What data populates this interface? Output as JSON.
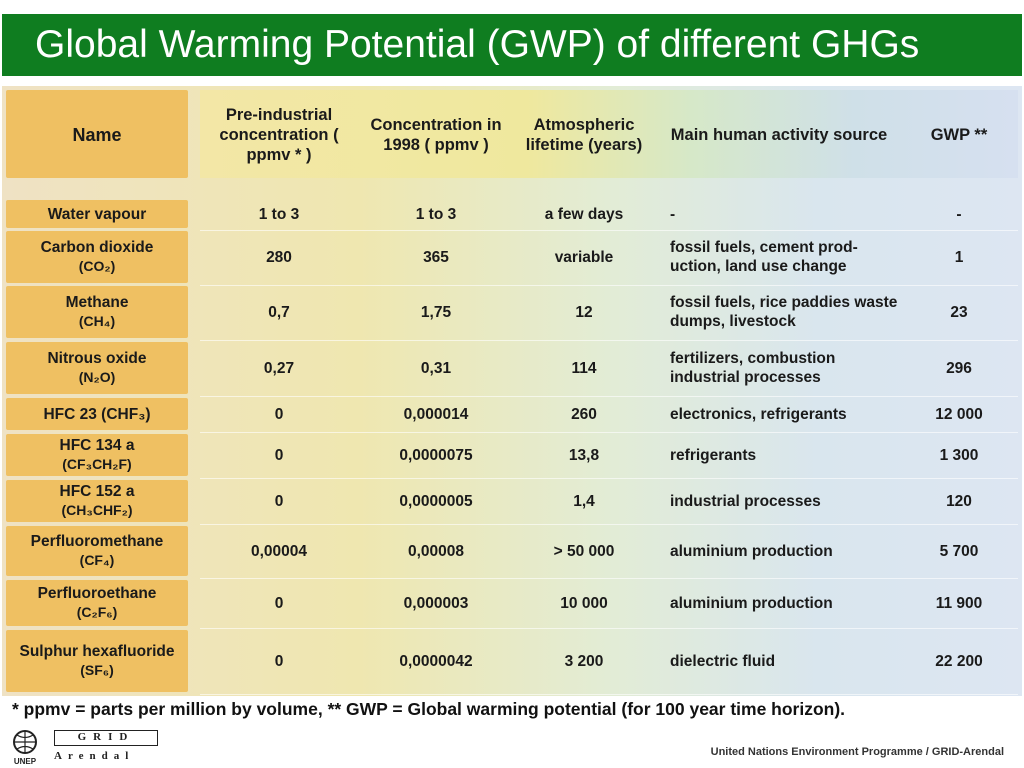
{
  "title": "Global Warming Potential (GWP) of different GHGs",
  "colors": {
    "title_bg": "#0f7d20",
    "name_col": "#efc062"
  },
  "columns": [
    "Name",
    "Pre-industrial concentration ( ppmv * )",
    "Concentration in 1998 ( ppmv )",
    "Atmospheric lifetime (years)",
    "Main human activity source",
    "GWP **"
  ],
  "rows": [
    {
      "name": "Water vapour",
      "formula": "",
      "pre": "1 to 3",
      "c1998": "1 to 3",
      "lifetime": "a few days",
      "source": "-",
      "gwp": "-"
    },
    {
      "name": "Carbon dioxide",
      "formula": "(CO₂)",
      "pre": "280",
      "c1998": "365",
      "lifetime": "variable",
      "source": "fossil fuels, cement prod-uction, land use change",
      "gwp": "1"
    },
    {
      "name": "Methane",
      "formula": "(CH₄)",
      "pre": "0,7",
      "c1998": "1,75",
      "lifetime": "12",
      "source": "fossil fuels, rice paddies waste dumps, livestock",
      "gwp": "23"
    },
    {
      "name": "Nitrous oxide",
      "formula": "(N₂O)",
      "pre": "0,27",
      "c1998": "0,31",
      "lifetime": "114",
      "source": "fertilizers, combustion industrial processes",
      "gwp": "296"
    },
    {
      "name": "HFC 23 (CHF₃)",
      "formula": "",
      "pre": "0",
      "c1998": "0,000014",
      "lifetime": "260",
      "source": "electronics, refrigerants",
      "gwp": "12 000"
    },
    {
      "name": "HFC 134 a",
      "formula": "(CF₃CH₂F)",
      "pre": "0",
      "c1998": "0,0000075",
      "lifetime": "13,8",
      "source": "refrigerants",
      "gwp": "1 300"
    },
    {
      "name": "HFC 152 a",
      "formula": "(CH₃CHF₂)",
      "pre": "0",
      "c1998": "0,0000005",
      "lifetime": "1,4",
      "source": "industrial processes",
      "gwp": "120"
    },
    {
      "name": "Perfluoromethane",
      "formula": "(CF₄)",
      "pre": "0,00004",
      "c1998": "0,00008",
      "lifetime": "> 50 000",
      "source": "aluminium production",
      "gwp": "5 700"
    },
    {
      "name": "Perfluoroethane",
      "formula": "(C₂F₆)",
      "pre": "0",
      "c1998": "0,000003",
      "lifetime": "10 000",
      "source": "aluminium production",
      "gwp": "11 900"
    },
    {
      "name": "Sulphur hexafluoride",
      "formula": "(SF₆)",
      "pre": "0",
      "c1998": "0,0000042",
      "lifetime": "3 200",
      "source": "dielectric fluid",
      "gwp": "22 200"
    }
  ],
  "footnote": "* ppmv = parts per million by volume, ** GWP = Global warming potential (for 100 year time horizon).",
  "logo": {
    "unep": "UNEP",
    "grid_top": "GRID",
    "grid_bottom": "Arendal"
  },
  "credit": "United Nations Environment Programme / GRID-Arendal"
}
